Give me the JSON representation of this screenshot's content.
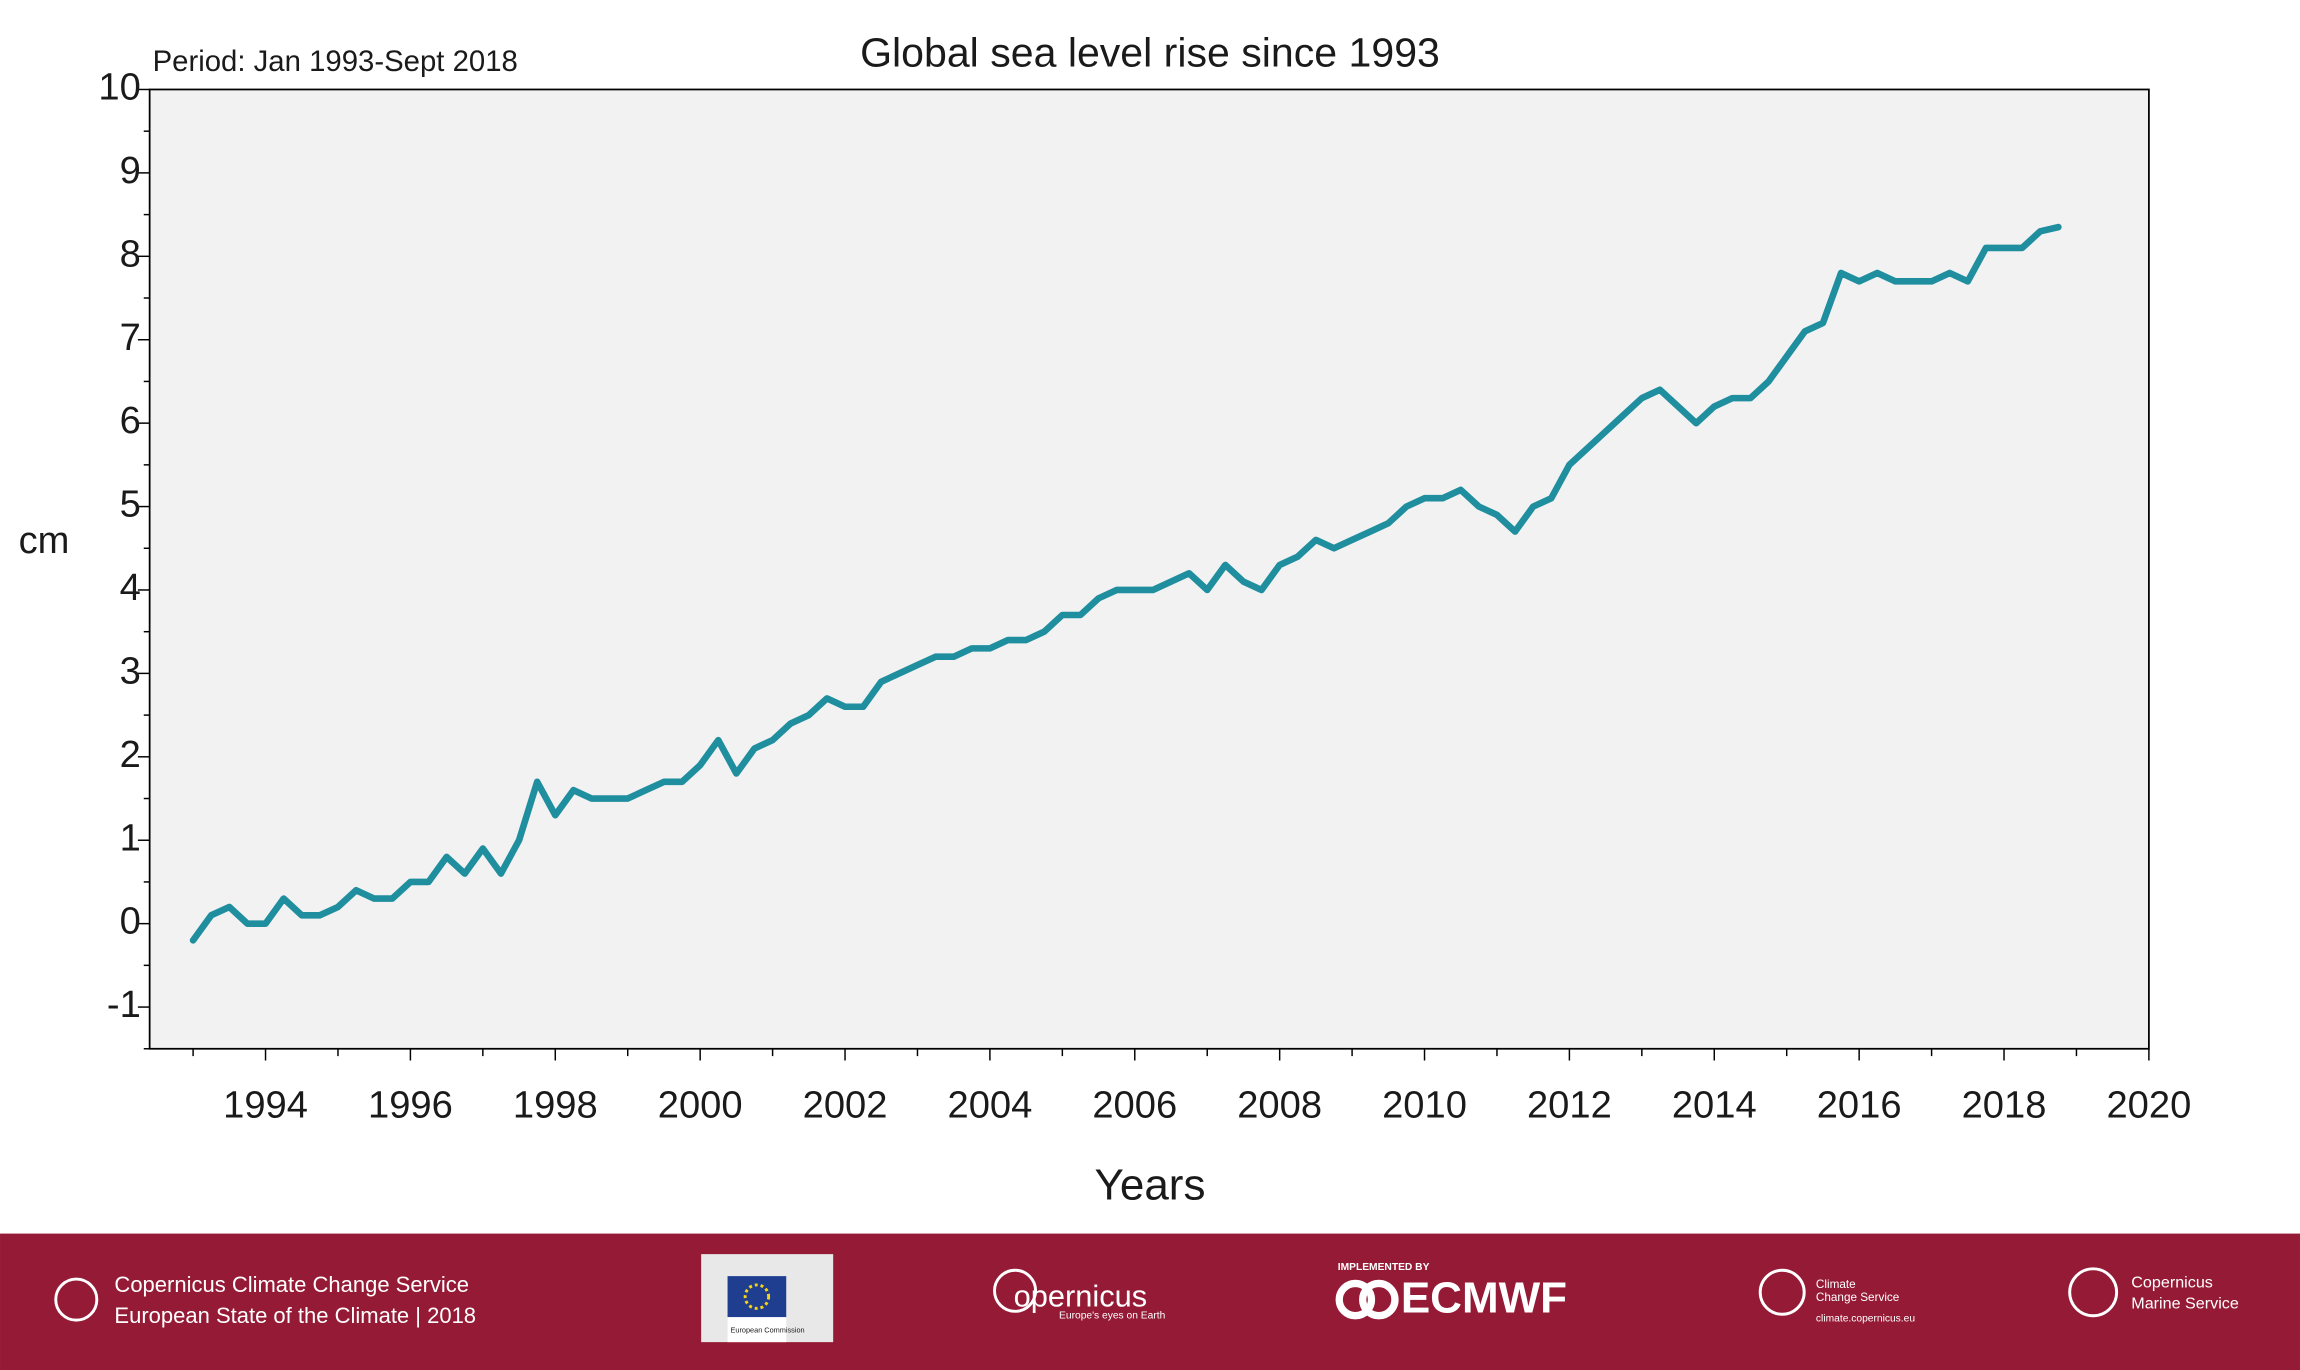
{
  "chart_data": {
    "type": "line",
    "title": "Global sea level rise since 1993",
    "subtitle": "Period: Jan 1993-Sept 2018",
    "x_label": "Years",
    "y_label": "cm",
    "xlim": [
      1992.4,
      2020
    ],
    "ylim": [
      -1.5,
      10
    ],
    "xticks": [
      1994,
      1996,
      1998,
      2000,
      2002,
      2004,
      2006,
      2008,
      2010,
      2012,
      2014,
      2016,
      2018,
      2020
    ],
    "xticks_minor": [
      1993,
      1995,
      1997,
      1999,
      2001,
      2003,
      2005,
      2007,
      2009,
      2011,
      2013,
      2015,
      2017,
      2019
    ],
    "yticks": [
      -1,
      0,
      1,
      2,
      3,
      4,
      5,
      6,
      7,
      8,
      9,
      10
    ],
    "yticks_minor": [
      -1.5,
      -0.5,
      0.5,
      1.5,
      2.5,
      3.5,
      4.5,
      5.5,
      6.5,
      7.5,
      8.5,
      9.5
    ],
    "grid": false,
    "background": "#f2f2f2",
    "x": [
      1993.0,
      1993.25,
      1993.5,
      1993.75,
      1994.0,
      1994.25,
      1994.5,
      1994.75,
      1995.0,
      1995.25,
      1995.5,
      1995.75,
      1996.0,
      1996.25,
      1996.5,
      1996.75,
      1997.0,
      1997.25,
      1997.5,
      1997.75,
      1998.0,
      1998.25,
      1998.5,
      1998.75,
      1999.0,
      1999.25,
      1999.5,
      1999.75,
      2000.0,
      2000.25,
      2000.5,
      2000.75,
      2001.0,
      2001.25,
      2001.5,
      2001.75,
      2002.0,
      2002.25,
      2002.5,
      2002.75,
      2003.0,
      2003.25,
      2003.5,
      2003.75,
      2004.0,
      2004.25,
      2004.5,
      2004.75,
      2005.0,
      2005.25,
      2005.5,
      2005.75,
      2006.0,
      2006.25,
      2006.5,
      2006.75,
      2007.0,
      2007.25,
      2007.5,
      2007.75,
      2008.0,
      2008.25,
      2008.5,
      2008.75,
      2009.0,
      2009.25,
      2009.5,
      2009.75,
      2010.0,
      2010.25,
      2010.5,
      2010.75,
      2011.0,
      2011.25,
      2011.5,
      2011.75,
      2012.0,
      2012.25,
      2012.5,
      2012.75,
      2013.0,
      2013.25,
      2013.5,
      2013.75,
      2014.0,
      2014.25,
      2014.5,
      2014.75,
      2015.0,
      2015.25,
      2015.5,
      2015.75,
      2016.0,
      2016.25,
      2016.5,
      2016.75,
      2017.0,
      2017.25,
      2017.5,
      2017.75,
      2018.0,
      2018.25,
      2018.5,
      2018.75
    ],
    "series": [
      {
        "color": "#1f8e9e",
        "values": [
          -0.2,
          0.1,
          0.2,
          0.0,
          0.0,
          0.3,
          0.1,
          0.1,
          0.2,
          0.4,
          0.3,
          0.3,
          0.5,
          0.5,
          0.8,
          0.6,
          0.9,
          0.6,
          1.0,
          1.7,
          1.3,
          1.6,
          1.5,
          1.5,
          1.5,
          1.6,
          1.7,
          1.7,
          1.9,
          2.2,
          1.8,
          2.1,
          2.2,
          2.4,
          2.5,
          2.7,
          2.6,
          2.6,
          2.9,
          3.0,
          3.1,
          3.2,
          3.2,
          3.3,
          3.3,
          3.4,
          3.4,
          3.5,
          3.7,
          3.7,
          3.9,
          4.0,
          4.0,
          4.0,
          4.1,
          4.2,
          4.0,
          4.3,
          4.1,
          4.0,
          4.3,
          4.4,
          4.6,
          4.5,
          4.6,
          4.7,
          4.8,
          5.0,
          5.1,
          5.1,
          5.2,
          5.0,
          4.9,
          4.7,
          5.0,
          5.1,
          5.5,
          5.7,
          5.9,
          6.1,
          6.3,
          6.4,
          6.2,
          6.0,
          6.2,
          6.3,
          6.3,
          6.5,
          6.8,
          7.1,
          7.2,
          7.8,
          7.7,
          7.8,
          7.7,
          7.7,
          7.7,
          7.8,
          7.7,
          8.1,
          8.1,
          8.1,
          8.3,
          8.35
        ]
      }
    ]
  },
  "footer": {
    "service_name": "Copernicus Climate Change Service",
    "report": "European State of the Climate | 2018",
    "ec_label": "European Commission",
    "copernicus": "opernicus",
    "copernicus_tagline": "Europe's eyes on Earth",
    "implemented_by": "IMPLEMENTED BY",
    "ecmwf": "ECMWF",
    "c3s_small_1": "Climate",
    "c3s_small_2": "Change Service",
    "c3s_url": "climate.copernicus.eu",
    "marine_1": "Copernicus",
    "marine_2": "Marine Service"
  }
}
